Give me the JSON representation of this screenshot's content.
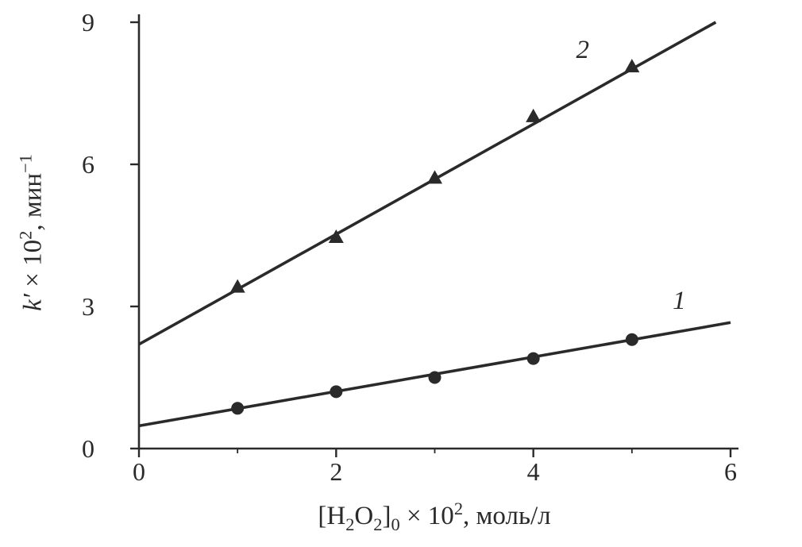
{
  "figure": {
    "background": "#ffffff",
    "ink_color": "#2a2a2a"
  },
  "chart_data": {
    "type": "scatter",
    "title": "",
    "xlabel": "[H₂O₂]₀ × 10², моль/л",
    "ylabel": "k′ × 10², мин⁻¹",
    "xlabel_parts": [
      {
        "text": "[H"
      },
      {
        "text": "2",
        "script": "sub"
      },
      {
        "text": "O"
      },
      {
        "text": "2",
        "script": "sub"
      },
      {
        "text": "]"
      },
      {
        "text": "0",
        "script": "sub"
      },
      {
        "text": " × 10"
      },
      {
        "text": "2",
        "script": "sup"
      },
      {
        "text": ", моль/л"
      }
    ],
    "ylabel_parts": [
      {
        "text": "k′",
        "italic": true
      },
      {
        "text": " × 10"
      },
      {
        "text": "2",
        "script": "sup"
      },
      {
        "text": ", мин"
      },
      {
        "text": "−1",
        "script": "sup"
      }
    ],
    "xlim": [
      0,
      6
    ],
    "ylim": [
      0,
      9
    ],
    "x_major_ticks": [
      0,
      2,
      4,
      6
    ],
    "x_minor_ticks": [
      1,
      3,
      5
    ],
    "y_major_ticks": [
      0,
      3,
      6,
      9
    ],
    "grid": false,
    "legend": "none",
    "series": [
      {
        "name": "1",
        "marker": "circle",
        "x": [
          1,
          2,
          3,
          4,
          5
        ],
        "y": [
          0.85,
          1.2,
          1.5,
          1.9,
          2.3
        ],
        "fit_line": {
          "x1": 0,
          "y1": 0.48,
          "x2": 6,
          "y2": 2.66
        },
        "label": {
          "text": "1",
          "x": 5.48,
          "y": 2.95
        }
      },
      {
        "name": "2",
        "marker": "triangle-up",
        "x": [
          1,
          2,
          3,
          4,
          5
        ],
        "y": [
          3.4,
          4.45,
          5.7,
          7.0,
          8.05
        ],
        "fit_line": {
          "x1": 0,
          "y1": 2.2,
          "x2": 5.85,
          "y2": 9.0
        },
        "label": {
          "text": "2",
          "x": 4.5,
          "y": 8.25
        }
      }
    ]
  }
}
